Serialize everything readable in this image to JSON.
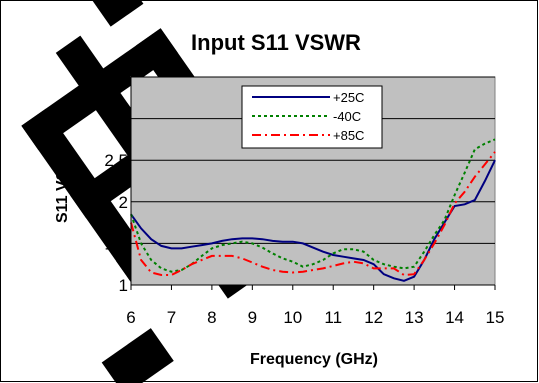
{
  "chart_data": {
    "type": "line",
    "title": "Input S11 VSWR",
    "xlabel": "Frequency (GHz)",
    "ylabel": "S11 VSWR",
    "xlim": [
      6,
      15
    ],
    "ylim": [
      1,
      3.5
    ],
    "xticks": [
      "6",
      "7",
      "8",
      "9",
      "10",
      "11",
      "12",
      "13",
      "14",
      "15"
    ],
    "yticks": [
      "1",
      "1.5",
      "2",
      "2.5",
      "3",
      "3.5"
    ],
    "grid": true,
    "legend_position": "top-center",
    "plot_background": "#c0c0c0",
    "series": [
      {
        "name": "+25C",
        "color": "#000080",
        "dash": "solid",
        "x": [
          6,
          6.25,
          6.5,
          6.75,
          7,
          7.25,
          7.5,
          7.75,
          8,
          8.25,
          8.5,
          8.75,
          9,
          9.25,
          9.5,
          9.75,
          10,
          10.25,
          10.5,
          10.75,
          11,
          11.25,
          11.5,
          11.75,
          12,
          12.25,
          12.5,
          12.75,
          13,
          13.25,
          13.5,
          13.75,
          14,
          14.25,
          14.5,
          14.75,
          15
        ],
        "y": [
          1.85,
          1.68,
          1.55,
          1.47,
          1.44,
          1.44,
          1.46,
          1.48,
          1.5,
          1.53,
          1.55,
          1.56,
          1.56,
          1.55,
          1.53,
          1.52,
          1.52,
          1.5,
          1.45,
          1.4,
          1.36,
          1.34,
          1.32,
          1.3,
          1.25,
          1.13,
          1.08,
          1.05,
          1.1,
          1.3,
          1.55,
          1.75,
          1.95,
          1.97,
          2.02,
          2.25,
          2.5
        ]
      },
      {
        "name": "-40C",
        "color": "#008000",
        "dash": "dotted",
        "x": [
          6,
          6.25,
          6.5,
          6.75,
          7,
          7.25,
          7.5,
          7.75,
          8,
          8.25,
          8.5,
          8.75,
          9,
          9.25,
          9.5,
          9.75,
          10,
          10.25,
          10.5,
          10.75,
          11,
          11.25,
          11.5,
          11.75,
          12,
          12.25,
          12.5,
          12.75,
          13,
          13.25,
          13.5,
          13.75,
          14,
          14.25,
          14.5,
          14.75,
          15
        ],
        "y": [
          1.85,
          1.5,
          1.3,
          1.2,
          1.16,
          1.18,
          1.25,
          1.35,
          1.44,
          1.48,
          1.5,
          1.52,
          1.5,
          1.45,
          1.38,
          1.32,
          1.28,
          1.22,
          1.25,
          1.3,
          1.38,
          1.43,
          1.43,
          1.4,
          1.3,
          1.25,
          1.22,
          1.2,
          1.22,
          1.4,
          1.6,
          1.78,
          2.08,
          2.35,
          2.63,
          2.7,
          2.75
        ]
      },
      {
        "name": "+85C",
        "color": "#ff0000",
        "dash": "dashdot",
        "x": [
          6,
          6.25,
          6.5,
          6.75,
          7,
          7.25,
          7.5,
          7.75,
          8,
          8.25,
          8.5,
          8.75,
          9,
          9.25,
          9.5,
          9.75,
          10,
          10.25,
          10.5,
          10.75,
          11,
          11.25,
          11.5,
          11.75,
          12,
          12.25,
          12.5,
          12.75,
          13,
          13.25,
          13.5,
          13.75,
          14,
          14.25,
          14.5,
          14.75,
          15
        ],
        "y": [
          1.75,
          1.3,
          1.15,
          1.12,
          1.12,
          1.18,
          1.25,
          1.3,
          1.35,
          1.35,
          1.35,
          1.32,
          1.27,
          1.22,
          1.18,
          1.16,
          1.15,
          1.16,
          1.18,
          1.2,
          1.23,
          1.26,
          1.28,
          1.26,
          1.2,
          1.2,
          1.2,
          1.12,
          1.13,
          1.3,
          1.5,
          1.72,
          1.98,
          2.12,
          2.3,
          2.45,
          2.6
        ]
      }
    ]
  },
  "watermark": {
    "text": "电",
    "color": "#000000"
  }
}
